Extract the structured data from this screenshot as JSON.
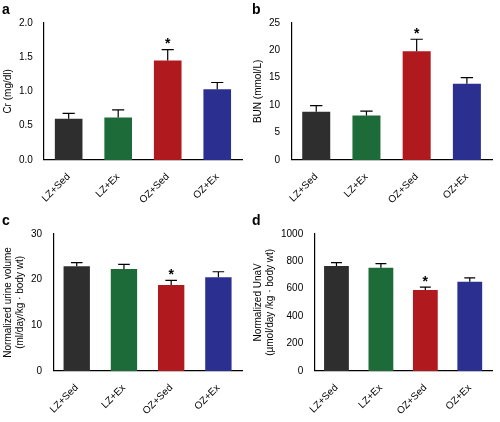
{
  "chart_data": [
    {
      "type": "bar",
      "title": "a",
      "y_label": "Cr (mg/dl)",
      "categories": [
        "LZ+Sed",
        "LZ+Ex",
        "OZ+Sed",
        "OZ+Ex"
      ],
      "values": [
        0.6,
        0.62,
        1.45,
        1.03
      ],
      "errors": [
        0.08,
        0.11,
        0.16,
        0.1
      ],
      "colors": [
        "#2e2e2e",
        "#1e6b3a",
        "#b0191e",
        "#2b2f8f"
      ],
      "ylim": [
        0,
        2
      ],
      "yticks": [
        {
          "value": 0,
          "label": "0.0"
        },
        {
          "value": 0.5,
          "label": "0.5"
        },
        {
          "value": 1,
          "label": "1.0"
        },
        {
          "value": 1.5,
          "label": "1.5"
        },
        {
          "value": 2,
          "label": "2.0"
        }
      ],
      "grid": false,
      "annotations": [
        {
          "category": "OZ+Sed",
          "text": "*"
        }
      ]
    },
    {
      "type": "bar",
      "title": "b",
      "y_label": "BUN (mmol/L)",
      "categories": [
        "LZ+Sed",
        "LZ+Ex",
        "OZ+Sed",
        "OZ+Ex"
      ],
      "values": [
        8.8,
        8.1,
        19.8,
        13.9
      ],
      "errors": [
        1.1,
        0.8,
        2.2,
        1.1
      ],
      "colors": [
        "#2e2e2e",
        "#1e6b3a",
        "#b0191e",
        "#2b2f8f"
      ],
      "ylim": [
        0,
        25
      ],
      "yticks": [
        0,
        5,
        10,
        15,
        20,
        25
      ],
      "grid": false,
      "annotations": [
        {
          "category": "OZ+Sed",
          "text": "*"
        }
      ]
    },
    {
      "type": "bar",
      "title": "c",
      "y_label": [
        "Normalized urine volume",
        "(ml/day/kg · body wt)"
      ],
      "categories": [
        "LZ+Sed",
        "LZ+Ex",
        "OZ+Sed",
        "OZ+Ex"
      ],
      "values": [
        22.9,
        22.3,
        18.8,
        20.5
      ],
      "errors": [
        0.8,
        1.0,
        1.0,
        1.2
      ],
      "colors": [
        "#2e2e2e",
        "#1e6b3a",
        "#b0191e",
        "#2b2f8f"
      ],
      "ylim": [
        0,
        30
      ],
      "yticks": [
        0,
        10,
        20,
        30
      ],
      "grid": false,
      "annotations": [
        {
          "category": "OZ+Sed",
          "text": "*"
        }
      ]
    },
    {
      "type": "bar",
      "title": "d",
      "y_label": [
        "Normalized UnaV",
        "(µmol/day /kg · body wt)"
      ],
      "categories": [
        "LZ+Sed",
        "LZ+Ex",
        "OZ+Sed",
        "OZ+Ex"
      ],
      "values": [
        765,
        752,
        590,
        650
      ],
      "errors": [
        25,
        30,
        22,
        28
      ],
      "colors": [
        "#2e2e2e",
        "#1e6b3a",
        "#b0191e",
        "#2b2f8f"
      ],
      "ylim": [
        0,
        1000
      ],
      "yticks": [
        0,
        200,
        400,
        600,
        800,
        1000
      ],
      "grid": false,
      "annotations": [
        {
          "category": "OZ+Sed",
          "text": "*"
        }
      ]
    }
  ]
}
